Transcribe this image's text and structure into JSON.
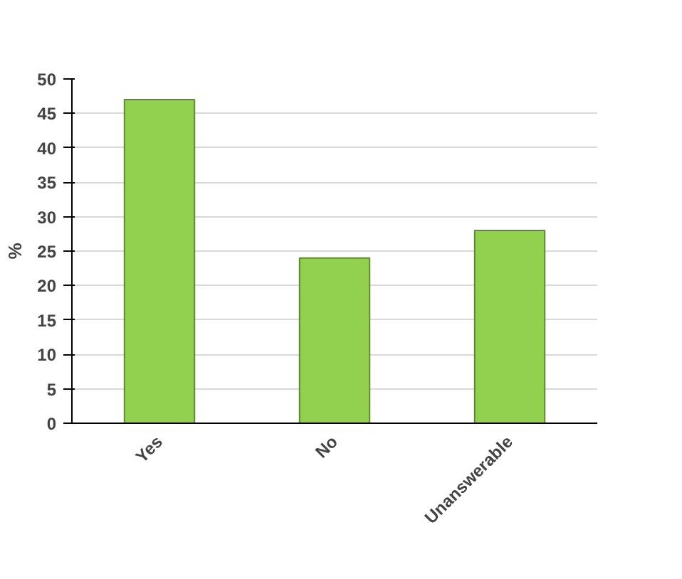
{
  "chart_data": {
    "type": "bar",
    "ylabel": "%",
    "categories": [
      "Yes",
      "No",
      "Unanswerable"
    ],
    "values": [
      47,
      24,
      28
    ],
    "color": "#92d050",
    "ylim": [
      0,
      50
    ],
    "yticks": [
      0,
      5,
      10,
      15,
      20,
      25,
      30,
      35,
      40,
      45,
      50
    ],
    "grid": "y"
  }
}
